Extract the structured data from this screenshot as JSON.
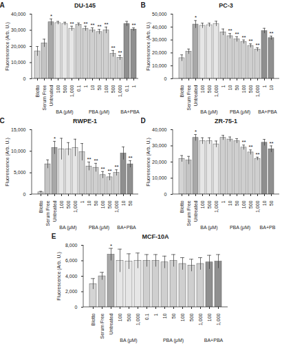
{
  "chart_data": [
    {
      "type": "bar",
      "panel": "A",
      "title": "DU-145",
      "y_label": "Fluorescence (Arb. U.)",
      "categories": [
        "Blotto",
        "Serum Free",
        "Untreated",
        "100",
        "500",
        "1,000",
        "0.1",
        "1",
        "10",
        "50",
        "100",
        "500",
        "1,000",
        "0.1",
        "1"
      ],
      "groups": [
        null,
        null,
        null,
        "BA (μM)",
        "BA (μM)",
        "BA (μM)",
        "PBA (μM)",
        "PBA (μM)",
        "PBA (μM)",
        "PBA (μM)",
        "PBA (μM)",
        "PBA (μM)",
        "PBA (μM)",
        "BA+PBA",
        "BA+PBA"
      ],
      "values": [
        17000,
        22000,
        35000,
        34500,
        34000,
        31000,
        33500,
        31000,
        30000,
        29000,
        30000,
        15500,
        13000,
        34000,
        30500
      ],
      "errors": [
        3000,
        2500,
        2000,
        1000,
        1000,
        1500,
        1000,
        1500,
        1500,
        1500,
        2000,
        2000,
        1500,
        1500,
        1000
      ],
      "annotations": [
        null,
        null,
        "*",
        null,
        null,
        "**",
        null,
        "**",
        "**",
        "**",
        "**",
        "**",
        "**",
        null,
        "**"
      ],
      "colors": [
        "#d4d4d4",
        "#c4c4c4",
        "#a8a8a8",
        "#e6e6e6",
        "#e6e6e6",
        "#e6e6e6",
        "#cfcfcf",
        "#cfcfcf",
        "#cfcfcf",
        "#cfcfcf",
        "#cfcfcf",
        "#cfcfcf",
        "#cfcfcf",
        "#8f8f8f",
        "#8f8f8f"
      ],
      "ylim": [
        0,
        40000
      ],
      "yticks": [
        0,
        {
          "value": 10000,
          "label": "10,000"
        },
        {
          "value": 20000,
          "label": "20,000"
        },
        {
          "value": 30000,
          "label": "30,000"
        },
        {
          "value": 40000,
          "label": "40,000"
        }
      ]
    },
    {
      "type": "bar",
      "panel": "B",
      "title": "PC-3",
      "y_label": "Fluorescence (Arb. U.)",
      "categories": [
        "Blotto",
        "Serum Free",
        "Untreated",
        "100",
        "500",
        "1,000",
        "1",
        "10",
        "50",
        "100",
        "500",
        "1,000",
        "1",
        "10"
      ],
      "groups": [
        null,
        null,
        null,
        "BA (μM)",
        "BA (μM)",
        "BA (μM)",
        "PBA (μM)",
        "PBA (μM)",
        "PBA (μM)",
        "PBA (μM)",
        "PBA (μM)",
        "PBA (μM)",
        "BA+PBA",
        "BA+PBA"
      ],
      "values": [
        16000,
        21000,
        42000,
        41000,
        41500,
        42500,
        36000,
        33000,
        30500,
        28500,
        25500,
        22500,
        37000,
        31500
      ],
      "errors": [
        2500,
        2000,
        3000,
        2000,
        1500,
        2000,
        2500,
        2000,
        2000,
        1500,
        1500,
        1500,
        2000,
        1500
      ],
      "annotations": [
        null,
        null,
        "*",
        null,
        null,
        null,
        null,
        "**",
        "**",
        "**",
        "**",
        "**",
        null,
        "**"
      ],
      "colors": [
        "#d4d4d4",
        "#c4c4c4",
        "#a8a8a8",
        "#e6e6e6",
        "#e6e6e6",
        "#e6e6e6",
        "#cfcfcf",
        "#cfcfcf",
        "#cfcfcf",
        "#cfcfcf",
        "#cfcfcf",
        "#cfcfcf",
        "#8f8f8f",
        "#8f8f8f"
      ],
      "ylim": [
        0,
        50000
      ],
      "yticks": [
        0,
        {
          "value": 10000,
          "label": "10,000"
        },
        {
          "value": 20000,
          "label": "20,000"
        },
        {
          "value": 30000,
          "label": "30,000"
        },
        {
          "value": 40000,
          "label": "40,000"
        },
        {
          "value": 50000,
          "label": "50,000"
        }
      ]
    },
    {
      "type": "bar",
      "panel": "C",
      "title": "RWPE-1",
      "y_label": "Fluorescence (Arb. U.)",
      "categories": [
        "Blotto",
        "Serum Free",
        "Untreated",
        "100",
        "500",
        "1,000",
        "1",
        "10",
        "50",
        "100",
        "500",
        "1,000",
        "10",
        "50"
      ],
      "groups": [
        null,
        null,
        null,
        "BA (μM)",
        "BA (μM)",
        "BA (μM)",
        "PBA (μM)",
        "PBA (μM)",
        "PBA (μM)",
        "PBA (μM)",
        "PBA (μM)",
        "PBA (μM)",
        "BA+PBA",
        "BA+PBA"
      ],
      "values": [
        500,
        7000,
        10800,
        10500,
        10500,
        10800,
        9800,
        6500,
        6200,
        4500,
        4000,
        5000,
        9500,
        7000
      ],
      "errors": [
        200,
        1000,
        1500,
        2500,
        1500,
        2000,
        2000,
        1000,
        1000,
        800,
        800,
        700,
        1500,
        800
      ],
      "annotations": [
        null,
        null,
        "*",
        null,
        null,
        null,
        null,
        "**",
        "**",
        "**",
        "**",
        "**",
        null,
        "**"
      ],
      "colors": [
        "#d4d4d4",
        "#c4c4c4",
        "#a8a8a8",
        "#e6e6e6",
        "#e6e6e6",
        "#e6e6e6",
        "#cfcfcf",
        "#cfcfcf",
        "#cfcfcf",
        "#cfcfcf",
        "#cfcfcf",
        "#cfcfcf",
        "#8f8f8f",
        "#8f8f8f"
      ],
      "ylim": [
        0,
        15000
      ],
      "yticks": [
        0,
        {
          "value": 5000,
          "label": "5,000"
        },
        {
          "value": 10000,
          "label": "10,000"
        },
        {
          "value": 15000,
          "label": "15,000"
        }
      ]
    },
    {
      "type": "bar",
      "panel": "D",
      "title": "ZR-75-1",
      "y_label": "Fluorescence (Arb. U.)",
      "categories": [
        "Blotto",
        "Serum Free",
        "Untreated",
        "100",
        "500",
        "1,000",
        "1",
        "10",
        "50",
        "100",
        "500",
        "1,000",
        "10",
        "50"
      ],
      "groups": [
        null,
        null,
        null,
        "BA (μM)",
        "BA (μM)",
        "BA (μM)",
        "PBA (μM)",
        "PBA (μM)",
        "PBA (μM)",
        "PBA (μM)",
        "PBA (μM)",
        "PBA (μM)",
        "BA+PB",
        "BA+PB"
      ],
      "values": [
        22000,
        21000,
        35000,
        33000,
        33000,
        31000,
        35000,
        34000,
        33000,
        29000,
        26000,
        22000,
        32000,
        28000
      ],
      "errors": [
        2000,
        2500,
        2000,
        2000,
        2000,
        2000,
        1500,
        1500,
        1500,
        1500,
        1500,
        1000,
        2000,
        2000
      ],
      "annotations": [
        null,
        null,
        "*",
        null,
        null,
        null,
        null,
        null,
        null,
        "**",
        "**",
        "**",
        null,
        "**"
      ],
      "colors": [
        "#d4d4d4",
        "#c4c4c4",
        "#a8a8a8",
        "#e6e6e6",
        "#e6e6e6",
        "#e6e6e6",
        "#cfcfcf",
        "#cfcfcf",
        "#cfcfcf",
        "#cfcfcf",
        "#cfcfcf",
        "#cfcfcf",
        "#8f8f8f",
        "#8f8f8f"
      ],
      "ylim": [
        0,
        40000
      ],
      "yticks": [
        0,
        {
          "value": 10000,
          "label": "10,000"
        },
        {
          "value": 20000,
          "label": "20,000"
        },
        {
          "value": 30000,
          "label": "30,000"
        },
        {
          "value": 40000,
          "label": "40,000"
        }
      ]
    },
    {
      "type": "bar",
      "panel": "E",
      "title": "MCF-10A",
      "y_label": "Fluorescence (Arb. U.)",
      "categories": [
        "Blotto",
        "Serum Free",
        "Untreated",
        "100",
        "500",
        "1,000",
        "0.1",
        "1",
        "10",
        "50",
        "100",
        "500",
        "1,000",
        "100",
        "1,000"
      ],
      "groups": [
        null,
        null,
        null,
        "BA (μM)",
        "BA (μM)",
        "BA (μM)",
        "PBA (μM)",
        "PBA (μM)",
        "PBA (μM)",
        "PBA (μM)",
        "PBA (μM)",
        "PBA (μM)",
        "PBA (μM)",
        "BA+PBA",
        "BA+PBA"
      ],
      "values": [
        3000,
        4000,
        6800,
        6000,
        5900,
        6000,
        6000,
        6000,
        5800,
        6000,
        5600,
        5400,
        5600,
        5800,
        5900
      ],
      "errors": [
        700,
        500,
        800,
        1500,
        1000,
        1000,
        800,
        800,
        800,
        800,
        800,
        800,
        800,
        900,
        900
      ],
      "annotations": [
        null,
        null,
        "*",
        null,
        null,
        null,
        null,
        null,
        null,
        null,
        null,
        null,
        null,
        null,
        null
      ],
      "colors": [
        "#d4d4d4",
        "#c4c4c4",
        "#a8a8a8",
        "#e6e6e6",
        "#e6e6e6",
        "#e6e6e6",
        "#cfcfcf",
        "#cfcfcf",
        "#cfcfcf",
        "#cfcfcf",
        "#cfcfcf",
        "#cfcfcf",
        "#cfcfcf",
        "#8f8f8f",
        "#8f8f8f"
      ],
      "ylim": [
        0,
        8000
      ],
      "yticks": [
        0,
        {
          "value": 2000,
          "label": "2,000"
        },
        {
          "value": 4000,
          "label": "4,000"
        },
        {
          "value": 6000,
          "label": "6,000"
        },
        {
          "value": 8000,
          "label": "8,000"
        }
      ]
    }
  ]
}
